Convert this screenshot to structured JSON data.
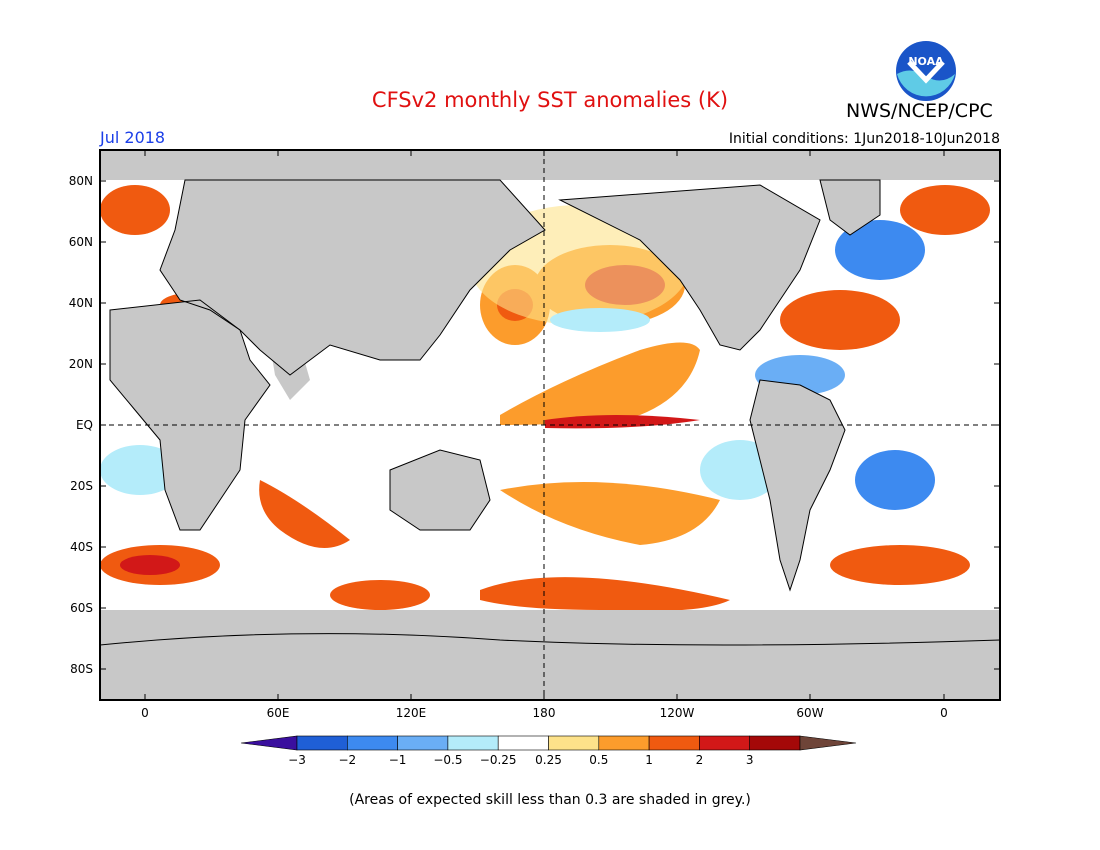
{
  "header": {
    "title": "CFSv2 monthly SST anomalies (K)",
    "month": "Jul 2018",
    "agency": "NWS/NCEP/CPC",
    "initial_conditions": "Initial conditions: 1Jun2018-10Jun2018",
    "logo_text": "NOAA"
  },
  "map": {
    "lat_labels": [
      "80N",
      "60N",
      "40N",
      "20N",
      "EQ",
      "20S",
      "40S",
      "60S",
      "80S"
    ],
    "lon_labels": [
      "0",
      "60E",
      "120E",
      "180",
      "120W",
      "60W",
      "0"
    ],
    "land_color": "#c8c8c8",
    "ocean_neutral_color": "#ffffff"
  },
  "colorbar": {
    "levels": [
      "-3",
      "-2",
      "-1",
      "-0.5",
      "-0.25",
      "0.25",
      "0.5",
      "1",
      "2",
      "3"
    ],
    "colors": [
      "#3a0f9e",
      "#1f5fd6",
      "#3d8af0",
      "#6aaef5",
      "#b4ecfa",
      "#ffffff",
      "#fde28a",
      "#fc9c2c",
      "#f05a10",
      "#d21818",
      "#a40808",
      "#6e4438"
    ]
  },
  "footnote": "(Areas of expected skill less than 0.3 are shaded in grey.)",
  "chart_data": {
    "type": "heatmap",
    "title": "CFSv2 monthly SST anomalies (K)",
    "subtitle": "Jul 2018",
    "variable": "SST anomaly",
    "units": "K",
    "colorbar_levels": [
      -3,
      -2,
      -1,
      -0.5,
      -0.25,
      0.25,
      0.5,
      1,
      2,
      3
    ],
    "notes": "Areas of expected skill less than 0.3 are shaded in grey."
  }
}
